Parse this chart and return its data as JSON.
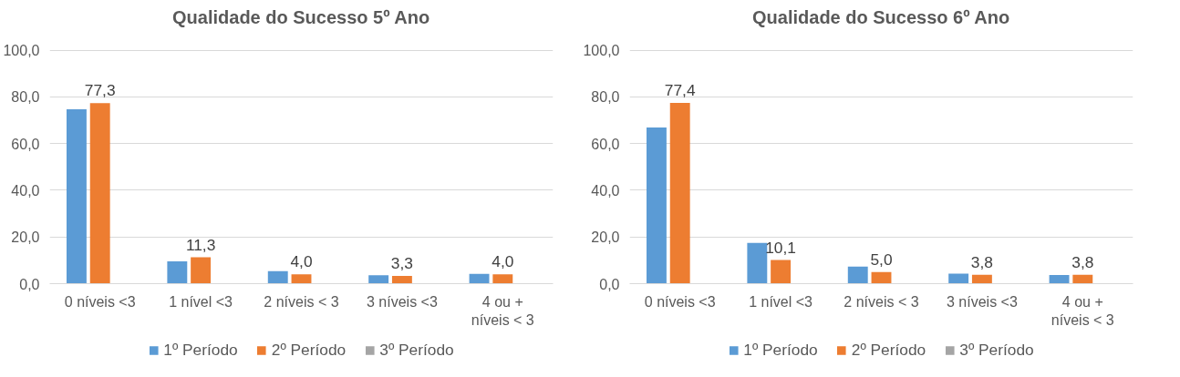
{
  "chart_data": [
    {
      "type": "bar",
      "title": "Qualidade do Sucesso 5º Ano",
      "categories": [
        "0 níveis <3",
        "1 nível <3",
        "2 níveis < 3",
        "3 níveis <3",
        "4 ou + níveis < 3"
      ],
      "series": [
        {
          "name": "1º Período",
          "color": "#5b9bd5",
          "values": [
            74.7,
            9.6,
            5.4,
            3.6,
            4.2
          ]
        },
        {
          "name": "2º Período",
          "color": "#ed7d31",
          "values": [
            77.3,
            11.3,
            4.0,
            3.3,
            4.0
          ],
          "value_labels": [
            "77,3",
            "11,3",
            "4,0",
            "3,3",
            "4,0"
          ]
        },
        {
          "name": "3º Período",
          "color": "#a5a5a5",
          "values": [
            null,
            null,
            null,
            null,
            null
          ]
        }
      ],
      "ylim": [
        0,
        100
      ],
      "yticks": [
        {
          "value": 0,
          "label": "0,0"
        },
        {
          "value": 20,
          "label": "20,0"
        },
        {
          "value": 40,
          "label": "40,0"
        },
        {
          "value": 60,
          "label": "60,0"
        },
        {
          "value": 80,
          "label": "80,0"
        },
        {
          "value": 100,
          "label": "100,0"
        }
      ],
      "grid": "y",
      "legend": "bottom"
    },
    {
      "type": "bar",
      "title": "Qualidade do Sucesso 6º Ano",
      "categories": [
        "0 níveis <3",
        "1 nível <3",
        "2 níveis < 3",
        "3 níveis <3",
        "4 ou + níveis < 3"
      ],
      "series": [
        {
          "name": "1º Período",
          "color": "#5b9bd5",
          "values": [
            66.9,
            17.4,
            7.3,
            4.3,
            3.7
          ]
        },
        {
          "name": "2º Período",
          "color": "#ed7d31",
          "values": [
            77.4,
            10.1,
            5.0,
            3.8,
            3.8
          ],
          "value_labels": [
            "77,4",
            "10,1",
            "5,0",
            "3,8",
            "3,8"
          ]
        },
        {
          "name": "3º Período",
          "color": "#a5a5a5",
          "values": [
            null,
            null,
            null,
            null,
            null
          ]
        }
      ],
      "ylim": [
        0,
        100
      ],
      "yticks": [
        {
          "value": 0,
          "label": "0,0"
        },
        {
          "value": 20,
          "label": "20,0"
        },
        {
          "value": 40,
          "label": "40,0"
        },
        {
          "value": 60,
          "label": "60,0"
        },
        {
          "value": 80,
          "label": "80,0"
        },
        {
          "value": 100,
          "label": "100,0"
        }
      ],
      "grid": "y",
      "legend": "bottom"
    }
  ]
}
